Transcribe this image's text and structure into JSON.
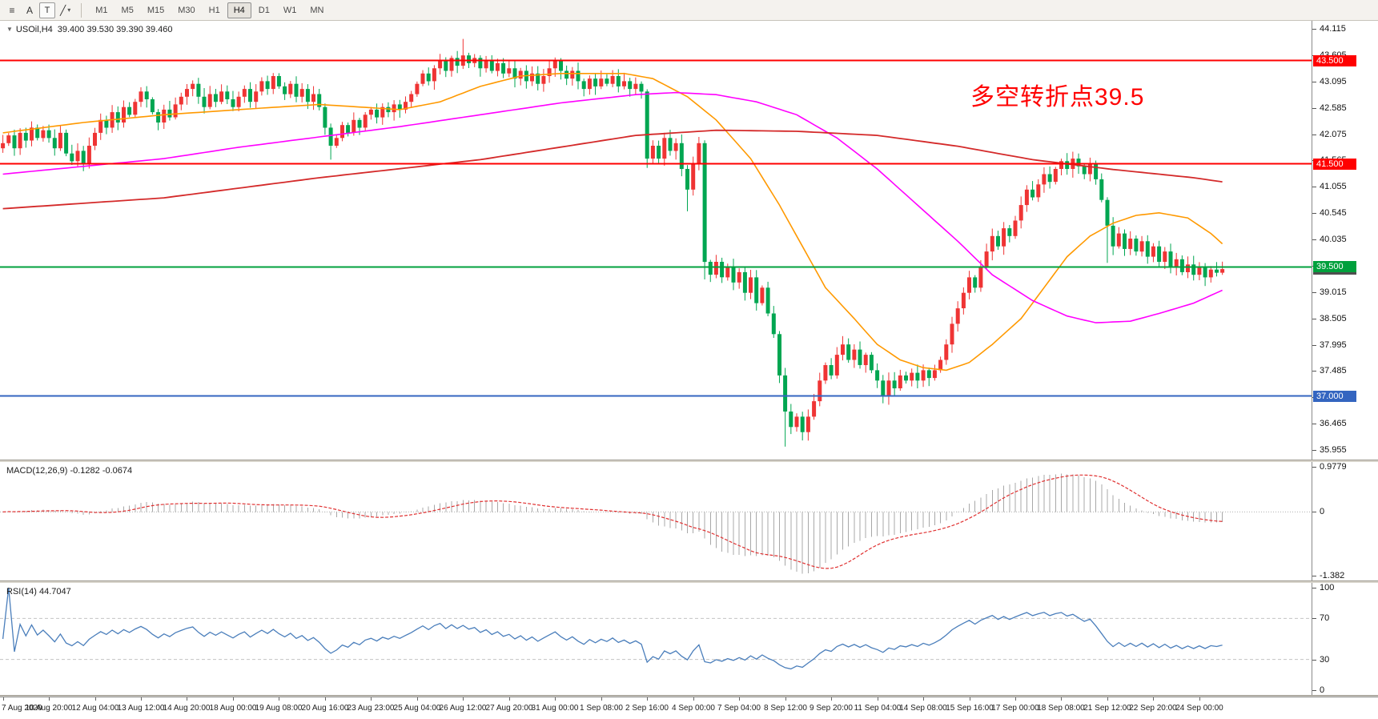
{
  "toolbar": {
    "icons": {
      "chart_list": "≡",
      "text_a": "A",
      "text_t": "T",
      "shapes": "╱",
      "caret": "▾",
      "dropdown": "▼"
    },
    "timeframes": [
      "M1",
      "M5",
      "M15",
      "M30",
      "H1",
      "H4",
      "D1",
      "W1",
      "MN"
    ],
    "active_timeframe": "H4"
  },
  "main_chart": {
    "symbol_period": "USOil,H4",
    "ohlc_text": "39.400 39.530 39.390 39.460",
    "annotation": {
      "text": "多空转折点39.5",
      "color": "#ff0000"
    }
  },
  "macd_panel": {
    "label": "MACD(12,26,9) -0.1282 -0.0674"
  },
  "rsi_panel": {
    "label": "RSI(14) 44.7047"
  },
  "chart_data": {
    "type": "candlestick",
    "symbol": "USOil",
    "timeframe": "H4",
    "title": "USOil,H4 39.400 39.530 39.390 39.460",
    "ohlc_current": {
      "open": 39.4,
      "high": 39.53,
      "low": 39.39,
      "close": 39.46
    },
    "price_axis": {
      "min": 35.955,
      "max": 44.115,
      "tick_start": 35.955,
      "tick_step": 0.51,
      "tick_count": 17,
      "decimals": 3
    },
    "first_open": 41.8,
    "closes": [
      41.9,
      42.05,
      41.8,
      42.1,
      41.95,
      42.2,
      42.0,
      42.15,
      42.0,
      41.8,
      42.1,
      41.7,
      41.55,
      41.75,
      41.5,
      41.85,
      42.1,
      42.35,
      42.2,
      42.5,
      42.3,
      42.6,
      42.45,
      42.7,
      42.9,
      42.75,
      42.5,
      42.3,
      42.55,
      42.4,
      42.65,
      42.8,
      42.95,
      43.05,
      42.8,
      42.6,
      42.85,
      42.7,
      42.9,
      42.75,
      42.6,
      42.8,
      42.95,
      42.7,
      42.9,
      43.1,
      42.95,
      43.2,
      43.0,
      42.85,
      43.05,
      42.8,
      42.95,
      42.7,
      42.85,
      42.6,
      42.2,
      41.85,
      42.0,
      42.25,
      42.1,
      42.35,
      42.2,
      42.45,
      42.55,
      42.4,
      42.6,
      42.5,
      42.65,
      42.55,
      42.7,
      42.85,
      43.05,
      43.25,
      43.1,
      43.35,
      43.5,
      43.3,
      43.55,
      43.4,
      43.6,
      43.45,
      43.55,
      43.35,
      43.5,
      43.3,
      43.45,
      43.25,
      43.35,
      43.15,
      43.3,
      43.1,
      43.25,
      43.05,
      43.2,
      43.35,
      43.5,
      43.3,
      43.15,
      43.3,
      43.1,
      42.95,
      43.15,
      43.0,
      43.15,
      43.05,
      43.2,
      43.0,
      43.1,
      42.95,
      43.05,
      42.9,
      41.6,
      41.85,
      41.6,
      42.0,
      41.75,
      41.9,
      41.4,
      41.0,
      41.5,
      41.9,
      39.6,
      39.35,
      39.6,
      39.3,
      39.5,
      39.2,
      39.4,
      39.0,
      39.3,
      38.8,
      39.1,
      38.6,
      38.2,
      37.4,
      36.7,
      36.4,
      36.6,
      36.3,
      36.6,
      36.9,
      37.3,
      37.6,
      37.4,
      37.8,
      38.0,
      37.7,
      37.9,
      37.6,
      37.8,
      37.5,
      37.3,
      37.0,
      37.3,
      37.15,
      37.4,
      37.3,
      37.45,
      37.3,
      37.5,
      37.35,
      37.5,
      37.7,
      38.0,
      38.4,
      38.7,
      39.0,
      39.3,
      39.1,
      39.5,
      39.8,
      40.1,
      39.9,
      40.25,
      40.1,
      40.4,
      40.7,
      41.0,
      40.85,
      41.1,
      41.3,
      41.15,
      41.4,
      41.55,
      41.4,
      41.6,
      41.45,
      41.3,
      41.5,
      41.2,
      40.8,
      40.3,
      39.9,
      40.15,
      39.85,
      40.05,
      39.8,
      40.0,
      39.7,
      39.9,
      39.6,
      39.8,
      39.5,
      39.65,
      39.4,
      39.55,
      39.35,
      39.5,
      39.3,
      39.45,
      39.39,
      39.46
    ],
    "wick_overrides": {
      "57": [
        null,
        41.58
      ],
      "80": [
        43.92,
        null
      ],
      "112": [
        null,
        41.42
      ],
      "119": [
        null,
        40.58
      ],
      "121": [
        42.02,
        null
      ],
      "122": [
        null,
        39.26
      ],
      "136": [
        null,
        36.02
      ],
      "139": [
        null,
        36.14
      ],
      "153": [
        null,
        36.86
      ],
      "192": [
        null,
        39.58
      ]
    },
    "candle_colors": {
      "up": "#ef3434",
      "down": "#00a651"
    },
    "horizontal_lines": [
      {
        "price": 43.5,
        "label": "43.500",
        "color": "#ff0000"
      },
      {
        "price": 41.5,
        "label": "41.500",
        "color": "#ff0000"
      },
      {
        "price": 39.5,
        "label": "39.500",
        "color": "#00a03c"
      },
      {
        "price": 37.0,
        "label": "37.000",
        "color": "#3465c0"
      }
    ],
    "current_price_tag": {
      "value": 39.46,
      "label": "39.460",
      "color": "#4f4f4f"
    },
    "moving_averages": [
      {
        "name": "ma-fast-orange",
        "color": "#ff9900",
        "width": 1.6,
        "anchors": [
          [
            0,
            42.1
          ],
          [
            14,
            42.3
          ],
          [
            28,
            42.45
          ],
          [
            41,
            42.55
          ],
          [
            55,
            42.65
          ],
          [
            69,
            42.55
          ],
          [
            76,
            42.7
          ],
          [
            83,
            43.0
          ],
          [
            90,
            43.2
          ],
          [
            97,
            43.25
          ],
          [
            108,
            43.25
          ],
          [
            113,
            43.15
          ],
          [
            119,
            42.8
          ],
          [
            124,
            42.35
          ],
          [
            130,
            41.6
          ],
          [
            135,
            40.7
          ],
          [
            139,
            39.9
          ],
          [
            143,
            39.1
          ],
          [
            148,
            38.5
          ],
          [
            152,
            38.0
          ],
          [
            156,
            37.7
          ],
          [
            160,
            37.55
          ],
          [
            164,
            37.5
          ],
          [
            168,
            37.65
          ],
          [
            172,
            38.0
          ],
          [
            177,
            38.5
          ],
          [
            181,
            39.1
          ],
          [
            185,
            39.7
          ],
          [
            189,
            40.1
          ],
          [
            193,
            40.35
          ],
          [
            197,
            40.5
          ],
          [
            201,
            40.55
          ],
          [
            206,
            40.45
          ],
          [
            210,
            40.15
          ],
          [
            212,
            39.95
          ]
        ]
      },
      {
        "name": "ma-mid-magenta",
        "color": "#ff00ff",
        "width": 1.6,
        "anchors": [
          [
            0,
            41.3
          ],
          [
            14,
            41.45
          ],
          [
            28,
            41.6
          ],
          [
            41,
            41.82
          ],
          [
            55,
            42.02
          ],
          [
            69,
            42.22
          ],
          [
            83,
            42.45
          ],
          [
            97,
            42.68
          ],
          [
            110,
            42.84
          ],
          [
            117,
            42.88
          ],
          [
            124,
            42.84
          ],
          [
            131,
            42.7
          ],
          [
            138,
            42.45
          ],
          [
            145,
            42.0
          ],
          [
            152,
            41.4
          ],
          [
            159,
            40.7
          ],
          [
            166,
            40.0
          ],
          [
            172,
            39.35
          ],
          [
            179,
            38.85
          ],
          [
            185,
            38.55
          ],
          [
            190,
            38.42
          ],
          [
            196,
            38.45
          ],
          [
            201,
            38.6
          ],
          [
            207,
            38.8
          ],
          [
            212,
            39.05
          ]
        ]
      },
      {
        "name": "ma-slow-red",
        "color": "#d42a2a",
        "width": 1.8,
        "anchors": [
          [
            0,
            40.63
          ],
          [
            28,
            40.84
          ],
          [
            55,
            41.23
          ],
          [
            83,
            41.58
          ],
          [
            110,
            42.05
          ],
          [
            124,
            42.15
          ],
          [
            138,
            42.13
          ],
          [
            152,
            42.05
          ],
          [
            166,
            41.84
          ],
          [
            179,
            41.58
          ],
          [
            193,
            41.39
          ],
          [
            207,
            41.23
          ],
          [
            212,
            41.15
          ]
        ]
      }
    ],
    "bars_per_label": 8,
    "time_labels": [
      "7 Aug 2020",
      "10 Aug 20:00",
      "12 Aug 04:00",
      "13 Aug 12:00",
      "14 Aug 20:00",
      "18 Aug 00:00",
      "19 Aug 08:00",
      "20 Aug 16:00",
      "23 Aug 23:00",
      "25 Aug 04:00",
      "26 Aug 12:00",
      "27 Aug 20:00",
      "31 Aug 00:00",
      "1 Sep 08:00",
      "2 Sep 16:00",
      "4 Sep 00:00",
      "7 Sep 04:00",
      "8 Sep 12:00",
      "9 Sep 20:00",
      "11 Sep 04:00",
      "14 Sep 08:00",
      "15 Sep 16:00",
      "17 Sep 00:00",
      "18 Sep 08:00",
      "21 Sep 12:00",
      "22 Sep 20:00",
      "24 Sep 00:00"
    ],
    "macd": {
      "fast": 12,
      "slow": 26,
      "signal": 9,
      "value": -0.1282,
      "signal_value": -0.0674,
      "ylim": [
        -1.382,
        0.9779
      ],
      "axis_labels": [
        "0.9779",
        "0",
        "-1.382"
      ],
      "histogram_color": "#a8a8a8",
      "signal_color": "#e03030"
    },
    "rsi": {
      "period": 14,
      "value": 44.7047,
      "levels": [
        70,
        30
      ],
      "axis_labels": [
        "100",
        "70",
        "30",
        "0"
      ],
      "color": "#4a7ebb",
      "ylim": [
        0,
        100
      ]
    }
  }
}
